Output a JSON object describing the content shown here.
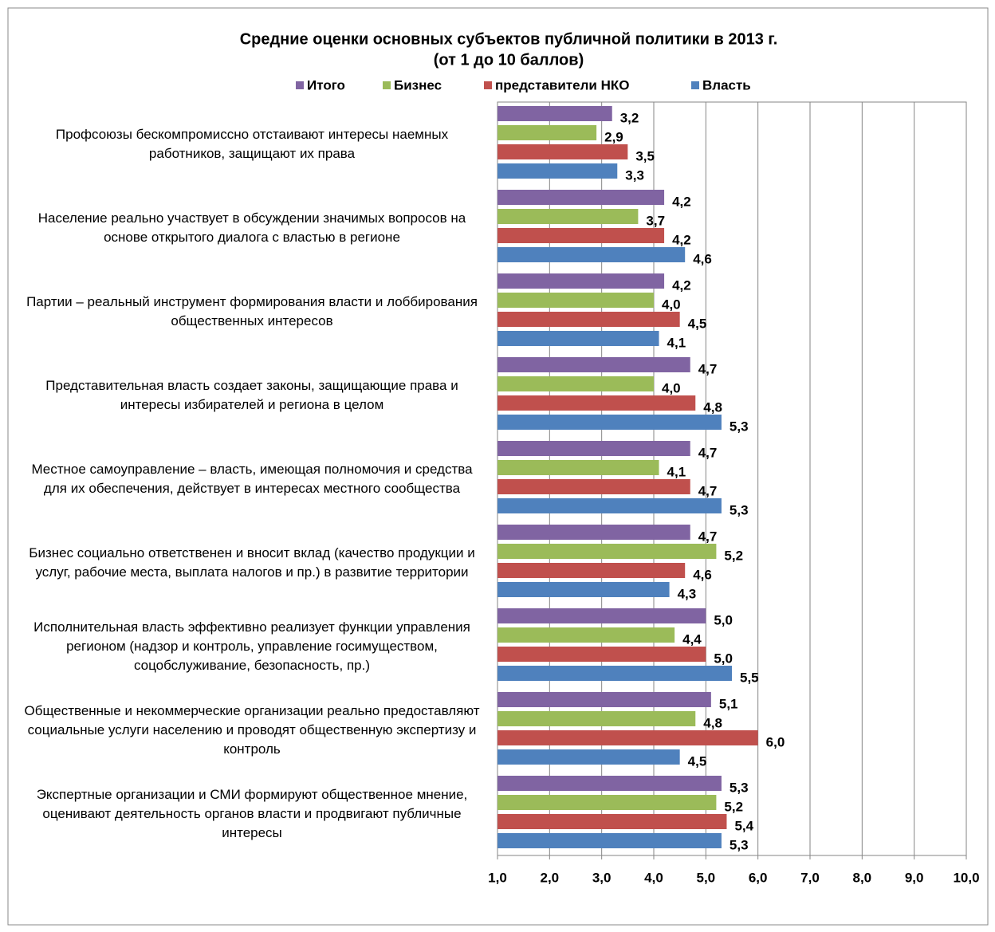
{
  "chart_data": {
    "type": "barh",
    "title": "Средние оценки основных субъектов публичной политики в 2013 г.",
    "subtitle": "(от 1 до 10 баллов)",
    "categories": [
      "Профсоюзы бескомпромиссно отстаивают интересы наемных работников, защищают их права",
      "Население реально участвует в обсуждении значимых вопросов на основе открытого диалога с властью в регионе",
      "Партии – реальный инструмент формирования власти и лоббирования общественных интересов",
      "Представительная власть создает законы, защищающие права и интересы избирателей и региона в целом",
      "Местное самоуправление – власть, имеющая полномочия и средства для их обеспечения, действует в интересах местного сообщества",
      "Бизнес социально ответственен и вносит вклад (качество продукции и услуг, рабочие места, выплата налогов и пр.) в развитие территории",
      "Исполнительная власть эффективно реализует функции управления регионом (надзор и контроль, управление госимуществом, соцобслуживание, безопасность, пр.)",
      "Общественные и некоммерческие организации реально предоставляют социальные услуги населению и проводят общественную экспертизу и контроль",
      "Экспертные организации и СМИ формируют общественное мнение, оценивают деятельность органов власти и продвигают публичные интересы"
    ],
    "series": [
      {
        "name": "Итого",
        "color": "#8064a2",
        "values": [
          3.2,
          4.2,
          4.2,
          4.7,
          4.7,
          4.7,
          5.0,
          5.1,
          5.3
        ],
        "value_labels": [
          "3,2",
          "4,2",
          "4,2",
          "4,7",
          "4,7",
          "4,7",
          "5,0",
          "5,1",
          "5,3"
        ]
      },
      {
        "name": "Бизнес",
        "color": "#9bbb59",
        "values": [
          2.9,
          3.7,
          4.0,
          4.0,
          4.1,
          5.2,
          4.4,
          4.8,
          5.2
        ],
        "value_labels": [
          "2,9",
          "3,7",
          "4,0",
          "4,0",
          "4,1",
          "5,2",
          "4,4",
          "4,8",
          "5,2"
        ]
      },
      {
        "name": "представители НКО",
        "color": "#c0504d",
        "values": [
          3.5,
          4.2,
          4.5,
          4.8,
          4.7,
          4.6,
          5.0,
          6.0,
          5.4
        ],
        "value_labels": [
          "3,5",
          "4,2",
          "4,5",
          "4,8",
          "4,7",
          "4,6",
          "5,0",
          "6,0",
          "5,4"
        ]
      },
      {
        "name": "Власть",
        "color": "#4f81bd",
        "values": [
          3.3,
          4.6,
          4.1,
          5.3,
          5.3,
          4.3,
          5.5,
          4.5,
          5.3
        ],
        "value_labels": [
          "3,3",
          "4,6",
          "4,1",
          "5,3",
          "5,3",
          "4,3",
          "5,5",
          "4,5",
          "5,3"
        ]
      }
    ],
    "xlim": [
      1,
      10
    ],
    "xticks": [
      {
        "value": 1,
        "label": "1,0"
      },
      {
        "value": 2,
        "label": "2,0"
      },
      {
        "value": 3,
        "label": "3,0"
      },
      {
        "value": 4,
        "label": "4,0"
      },
      {
        "value": 5,
        "label": "5,0"
      },
      {
        "value": 6,
        "label": "6,0"
      },
      {
        "value": 7,
        "label": "7,0"
      },
      {
        "value": 8,
        "label": "8,0"
      },
      {
        "value": 9,
        "label": "9,0"
      },
      {
        "value": 10,
        "label": "10,0"
      }
    ],
    "grid": true,
    "legend": "top"
  }
}
